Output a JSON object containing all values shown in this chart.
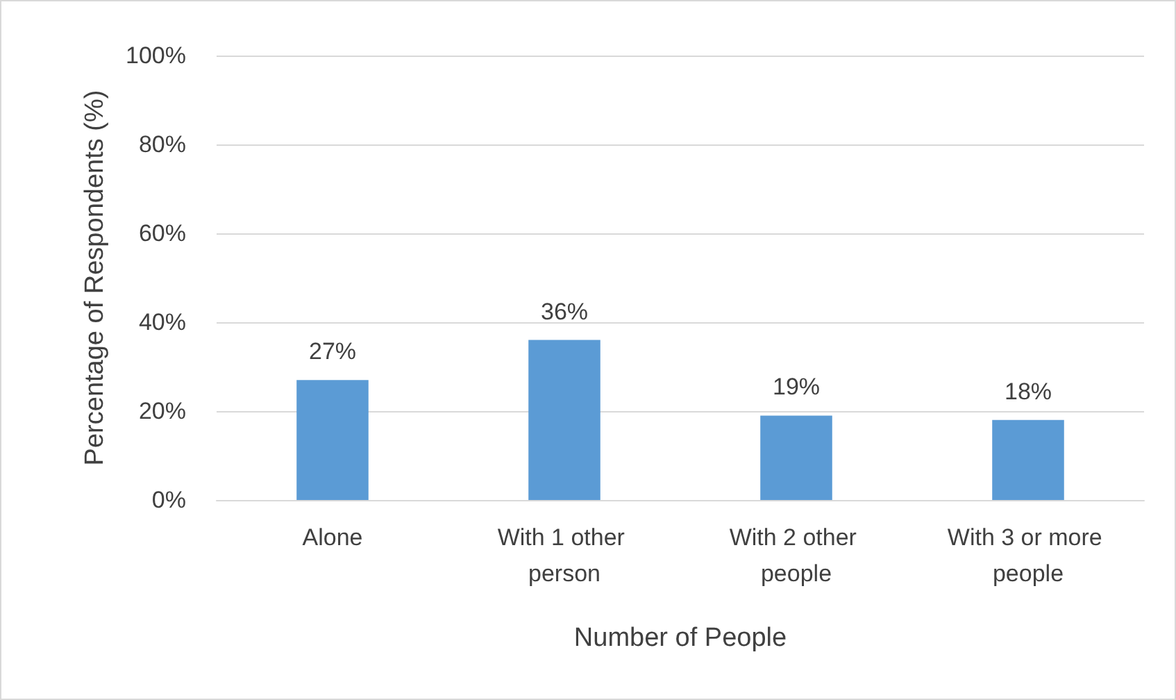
{
  "chart_data": {
    "type": "bar",
    "xlabel": "Number of People",
    "ylabel": "Percentage of Respondents (%)",
    "categories": [
      "Alone",
      "With 1 other person",
      "With 2 other people",
      "With 3 or more people"
    ],
    "values": [
      27,
      36,
      19,
      18
    ],
    "color": "#5b9bd5",
    "value_labels": [
      "27%",
      "36%",
      "19%",
      "18%"
    ],
    "ylim": [
      0,
      100
    ],
    "yticks": [
      {
        "value": 0,
        "label": "0%"
      },
      {
        "value": 20,
        "label": "20%"
      },
      {
        "value": 40,
        "label": "40%"
      },
      {
        "value": 60,
        "label": "60%"
      },
      {
        "value": 80,
        "label": "80%"
      },
      {
        "value": 100,
        "label": "100%"
      }
    ],
    "grid": "y"
  }
}
